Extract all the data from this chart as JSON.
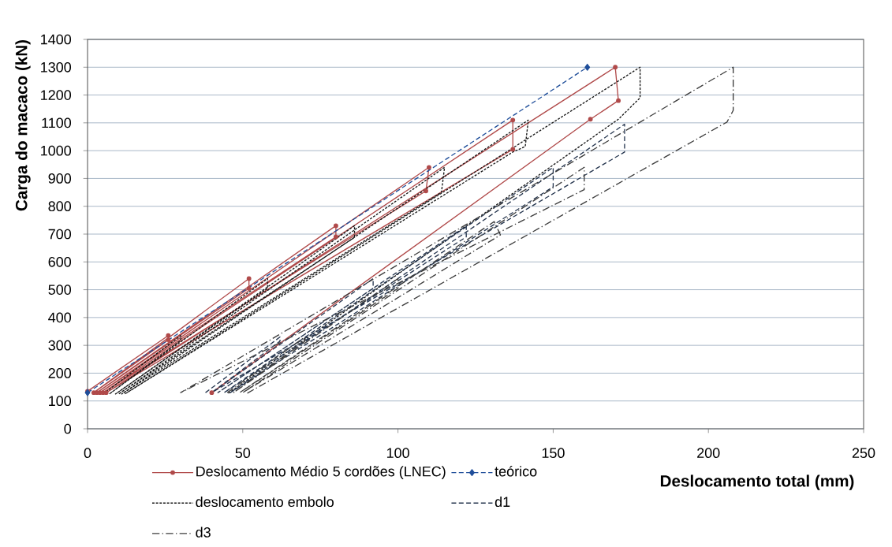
{
  "chart_data": {
    "type": "line",
    "xlabel": "Deslocamento total (mm)",
    "ylabel": "Carga do macaco (kN)",
    "xlim": [
      0,
      250
    ],
    "ylim": [
      0,
      1400
    ],
    "xticks": [
      0,
      50,
      100,
      150,
      200,
      250
    ],
    "yticks": [
      0,
      100,
      200,
      300,
      400,
      500,
      600,
      700,
      800,
      900,
      1000,
      1100,
      1200,
      1300,
      1400
    ],
    "grid": "y",
    "legend": "bottom",
    "series": [
      {
        "name": "Deslocamento Médio 5 cordões (LNEC)",
        "color": "#b04a4a",
        "marker": "circle",
        "line_style": "solid",
        "x": [
          0,
          26,
          26,
          2,
          52,
          52,
          3,
          80,
          80,
          4,
          110,
          109,
          5,
          137,
          137,
          6,
          170,
          171,
          162,
          40
        ],
        "values": [
          135,
          335,
          320,
          130,
          540,
          505,
          130,
          730,
          690,
          130,
          940,
          855,
          130,
          1110,
          1005,
          130,
          1300,
          1180,
          1113,
          130
        ]
      },
      {
        "name": "teórico",
        "color": "#1f4e9a",
        "marker": "diamond",
        "line_style": "dashed",
        "x": [
          0,
          161
        ],
        "values": [
          130,
          1300
        ]
      },
      {
        "name": "deslocamento embolo",
        "color": "#161616",
        "marker": "none",
        "line_style": "dotted",
        "x": [
          5,
          30,
          30,
          7,
          58,
          58,
          9,
          86,
          86,
          10,
          115,
          114,
          11,
          142,
          141,
          137,
          12,
          178,
          178,
          171,
          45
        ],
        "values": [
          125,
          335,
          318,
          125,
          540,
          505,
          125,
          730,
          688,
          125,
          940,
          850,
          125,
          1110,
          1015,
          995,
          125,
          1300,
          1190,
          1113,
          125
        ]
      },
      {
        "name": "d1",
        "color": "#26364f",
        "marker": "none",
        "line_style": "dashed",
        "x": [
          38,
          62,
          62,
          40,
          92,
          92,
          42,
          122,
          122,
          44,
          150,
          150,
          46,
          173,
          173,
          40
        ],
        "values": [
          130,
          330,
          315,
          130,
          540,
          505,
          130,
          730,
          690,
          130,
          940,
          870,
          130,
          1095,
          995,
          130
        ]
      },
      {
        "name": "d3",
        "color": "#3c3c3c",
        "marker": "none",
        "line_style": "dashdot",
        "x": [
          45,
          70,
          70,
          47,
          100,
          100,
          49,
          131,
          133,
          50,
          160,
          160,
          30,
          208,
          208,
          206,
          51
        ],
        "values": [
          130,
          330,
          315,
          130,
          540,
          505,
          130,
          745,
          697,
          130,
          940,
          860,
          130,
          1300,
          1145,
          1103,
          125
        ]
      }
    ]
  }
}
